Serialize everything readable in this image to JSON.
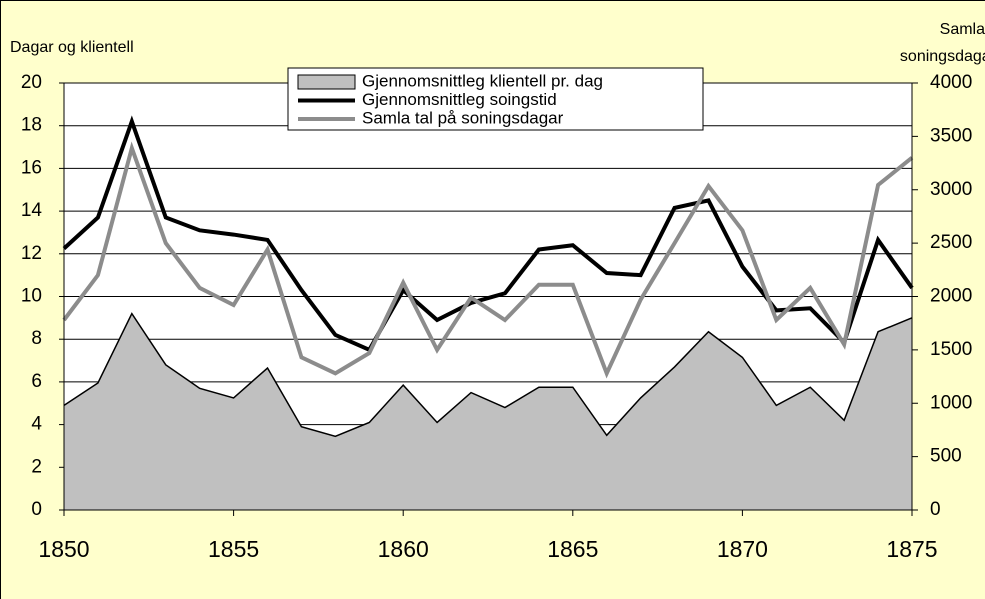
{
  "chart_data": {
    "type": "line",
    "y_label": "Dagar og klientell",
    "y2_label": [
      "Samla",
      "soningsdagar"
    ],
    "x": [
      1850,
      1851,
      1852,
      1853,
      1854,
      1855,
      1856,
      1857,
      1858,
      1859,
      1860,
      1861,
      1862,
      1863,
      1864,
      1865,
      1866,
      1867,
      1868,
      1869,
      1870,
      1871,
      1872,
      1873,
      1874,
      1875
    ],
    "xlim": [
      1850,
      1875
    ],
    "xticks": [
      1850,
      1855,
      1860,
      1865,
      1870,
      1875
    ],
    "ylim": [
      0,
      20
    ],
    "yticks": [
      0,
      2,
      4,
      6,
      8,
      10,
      12,
      14,
      16,
      18,
      20
    ],
    "y2lim": [
      0,
      4000
    ],
    "y2ticks": [
      0,
      500,
      1000,
      1500,
      2000,
      2500,
      3000,
      3500,
      4000
    ],
    "grid": true,
    "series": [
      {
        "name": "Gjennomsnittleg klientell pr. dag",
        "kind": "area",
        "color": "#c0c0c0",
        "values": [
          4.9,
          5.95,
          9.2,
          6.8,
          5.7,
          5.25,
          6.65,
          3.9,
          3.45,
          4.1,
          5.85,
          4.1,
          5.5,
          4.8,
          5.75,
          5.75,
          3.5,
          5.25,
          6.7,
          8.35,
          7.15,
          4.9,
          5.75,
          4.2,
          8.35,
          9.0
        ]
      },
      {
        "name": "Gjennomsnittleg soingstid",
        "kind": "line",
        "color": "#000000",
        "values": [
          12.25,
          13.7,
          18.2,
          13.7,
          13.1,
          12.9,
          12.65,
          10.3,
          8.2,
          7.5,
          10.3,
          8.9,
          9.7,
          10.15,
          12.2,
          12.4,
          11.1,
          11.0,
          14.15,
          14.5,
          11.4,
          9.35,
          9.45,
          7.85,
          12.65,
          10.4
        ]
      },
      {
        "name": "Samla tal på soningsdagar",
        "kind": "line",
        "color": "#8c8c8c",
        "axis": "y2",
        "values": [
          1780,
          2200,
          3390,
          2500,
          2080,
          1920,
          2440,
          1430,
          1280,
          1470,
          2130,
          1500,
          1990,
          1780,
          2110,
          2110,
          1280,
          1970,
          2500,
          3035,
          2620,
          1780,
          2080,
          1550,
          3045,
          3300
        ]
      }
    ]
  }
}
